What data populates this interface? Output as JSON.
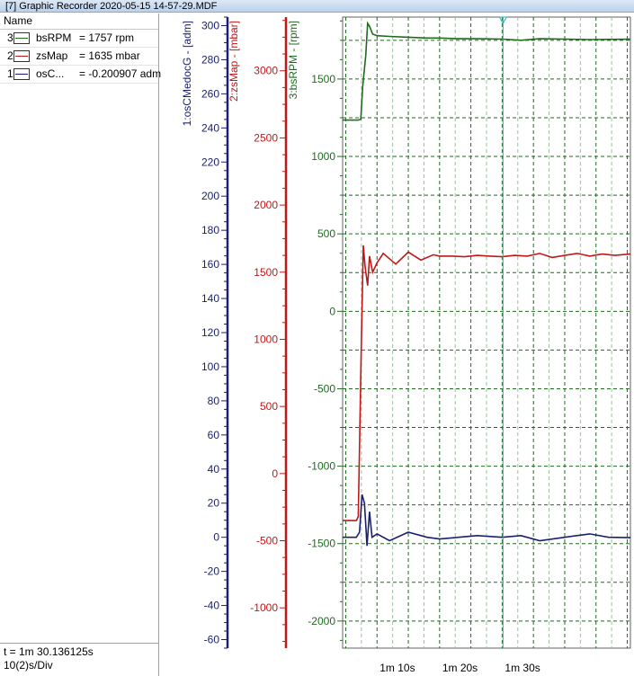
{
  "window": {
    "title": "[7] Graphic Recorder  2020-05-15  14-57-29.MDF"
  },
  "legend": {
    "header": "Name",
    "items": [
      {
        "num": "3",
        "name": "bsRPM",
        "value": "=  1757 rpm",
        "color": "#1e6b1e"
      },
      {
        "num": "2",
        "name": "zsMap",
        "value": "=  1635 mbar",
        "color": "#c01818"
      },
      {
        "num": "1",
        "name": "osC...",
        "value": "= -0.200907 adm",
        "color": "#1a1f6e"
      }
    ]
  },
  "status": {
    "time": "t = 1m 30.136125s",
    "scale": "10(2)s/Div"
  },
  "chart_data": {
    "type": "line",
    "x_unit": "s",
    "x_range": [
      64.5,
      110.5
    ],
    "cursor_t": 90.136,
    "x_tick_labels": [
      {
        "t": 70,
        "label": "1m 10s"
      },
      {
        "t": 80,
        "label": "1m 20s"
      },
      {
        "t": 90,
        "label": "1m 30s"
      }
    ],
    "axes": [
      {
        "id": "osc",
        "label": "1:osCMedocG - [adm]",
        "color": "#1a1f6e",
        "range": [
          -65,
          305
        ],
        "ticks": [
          300,
          280,
          260,
          240,
          220,
          200,
          180,
          160,
          140,
          120,
          100,
          80,
          60,
          40,
          20,
          0,
          -20,
          -40,
          -60
        ]
      },
      {
        "id": "map",
        "label": "2:zsMap - [mbar]",
        "color": "#c01818",
        "range": [
          -1300,
          3400
        ],
        "ticks": [
          3000,
          2500,
          2000,
          1500,
          1000,
          500,
          0,
          -500,
          -1000
        ]
      },
      {
        "id": "rpm",
        "label": "3:bsRPM - [rpm]",
        "color": "#1e6b1e",
        "range": [
          -2175,
          1900
        ],
        "ticks": [
          1500,
          1000,
          500,
          0,
          -500,
          -1000,
          -1500,
          -2000
        ]
      }
    ],
    "series": [
      {
        "name": "bsRPM",
        "axis": "rpm",
        "color": "#1e6b1e",
        "points": [
          [
            64.5,
            1235
          ],
          [
            67.0,
            1235
          ],
          [
            67.4,
            1240
          ],
          [
            67.7,
            1450
          ],
          [
            68.2,
            1650
          ],
          [
            68.5,
            1860
          ],
          [
            68.8,
            1840
          ],
          [
            69.3,
            1790
          ],
          [
            70,
            1780
          ],
          [
            72,
            1775
          ],
          [
            75,
            1770
          ],
          [
            78,
            1765
          ],
          [
            80,
            1765
          ],
          [
            83,
            1760
          ],
          [
            86,
            1760
          ],
          [
            90,
            1758
          ],
          [
            93,
            1750
          ],
          [
            96,
            1760
          ],
          [
            100,
            1758
          ],
          [
            104,
            1755
          ],
          [
            110.5,
            1757
          ]
        ]
      },
      {
        "name": "zsMap",
        "axis": "map",
        "color": "#c01818",
        "points": [
          [
            64.5,
            -350
          ],
          [
            66.7,
            -350
          ],
          [
            67.0,
            -320
          ],
          [
            67.5,
            1000
          ],
          [
            67.8,
            1700
          ],
          [
            68.1,
            1540
          ],
          [
            68.5,
            1400
          ],
          [
            68.8,
            1620
          ],
          [
            69.3,
            1500
          ],
          [
            70.0,
            1570
          ],
          [
            71,
            1640
          ],
          [
            73,
            1560
          ],
          [
            75,
            1650
          ],
          [
            77,
            1590
          ],
          [
            79,
            1630
          ],
          [
            80,
            1620
          ],
          [
            82,
            1620
          ],
          [
            84,
            1615
          ],
          [
            86,
            1625
          ],
          [
            88,
            1620
          ],
          [
            90,
            1615
          ],
          [
            92,
            1625
          ],
          [
            94,
            1620
          ],
          [
            96,
            1640
          ],
          [
            98,
            1610
          ],
          [
            100,
            1625
          ],
          [
            102,
            1640
          ],
          [
            104,
            1620
          ],
          [
            106,
            1635
          ],
          [
            108,
            1625
          ],
          [
            110.5,
            1635
          ]
        ]
      },
      {
        "name": "osCMedocG",
        "axis": "osc",
        "color": "#1a1f6e",
        "points": [
          [
            64.5,
            0
          ],
          [
            66.7,
            0
          ],
          [
            67.2,
            3
          ],
          [
            67.6,
            25
          ],
          [
            68.0,
            20
          ],
          [
            68.4,
            -5
          ],
          [
            68.8,
            15
          ],
          [
            69.2,
            0
          ],
          [
            70,
            2
          ],
          [
            72,
            -2
          ],
          [
            75,
            3
          ],
          [
            78,
            0
          ],
          [
            80,
            -1
          ],
          [
            83,
            0
          ],
          [
            86,
            1
          ],
          [
            90,
            0
          ],
          [
            93,
            1
          ],
          [
            96,
            -2
          ],
          [
            100,
            0
          ],
          [
            104,
            2
          ],
          [
            107,
            0
          ],
          [
            110.5,
            -0.2
          ]
        ]
      }
    ]
  }
}
